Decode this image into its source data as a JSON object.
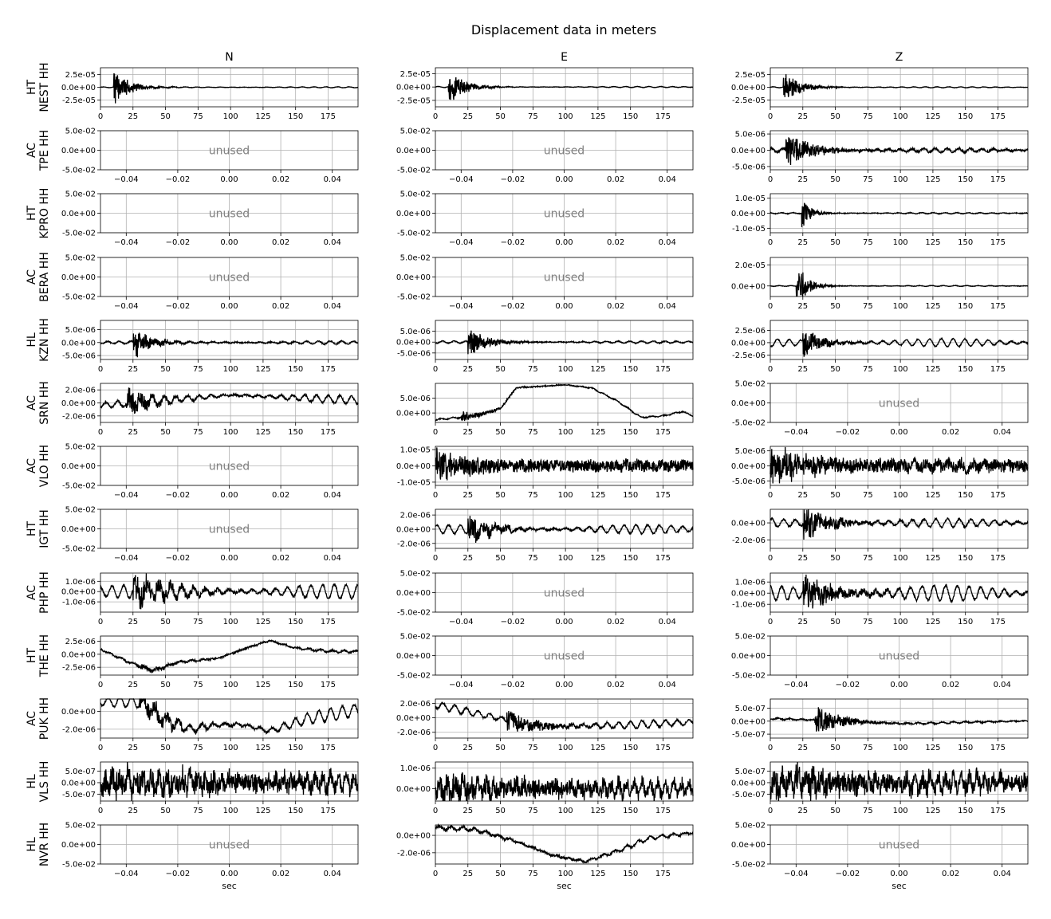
{
  "figure": {
    "title": "Displacement data in meters"
  },
  "chart_data": {
    "type": "line",
    "title": "Displacement data in meters",
    "layout": {
      "rows": 13,
      "cols": 3
    },
    "columns": [
      "N",
      "E",
      "Z"
    ],
    "xlabel": "sec",
    "stations": [
      "HT\nNEST HH",
      "AC\nTPE HH",
      "HT\nKPRO HH",
      "AC\nBERA HH",
      "HL\nKZN HH",
      "AC\nSRN HH",
      "AC\nVLO HH",
      "HT\nIGT HH",
      "AC\nPHP HH",
      "HT\nTHE HH",
      "AC\nPUK HH",
      "HL\nVLS HH",
      "HL\nNVR HH"
    ],
    "unused_label": "unused",
    "unused_axis": {
      "xlim": [
        -0.05,
        0.05
      ],
      "xticks": [
        -0.04,
        -0.02,
        0.0,
        0.02,
        0.04
      ],
      "xtick_labels": [
        "−0.04",
        "−0.02",
        "0.00",
        "0.02",
        "0.04"
      ],
      "ylim": [
        -0.05,
        0.05
      ],
      "yticks": [
        0.05,
        0.0,
        -0.05
      ],
      "ytick_labels": [
        "5.0e-02",
        "0.0e+00",
        "-5.0e-02"
      ]
    },
    "used_xaxis": {
      "xlim": [
        0,
        198
      ],
      "xticks": [
        0,
        25,
        50,
        75,
        100,
        125,
        150,
        175
      ],
      "xtick_labels": [
        "0",
        "25",
        "50",
        "75",
        "100",
        "125",
        "150",
        "175"
      ]
    },
    "traces": {
      "0-0": {
        "ylim": [
          -3.8e-05,
          3.8e-05
        ],
        "yticks": [
          2.5e-05,
          0,
          -2.5e-05
        ],
        "ytick_labels": [
          "2.5e-05",
          "0.0e+00",
          "-2.5e-05"
        ],
        "onset": 10,
        "amp": 3.6e-05,
        "decay": 12,
        "noise": 3e-07,
        "wave": 1e-06,
        "wper": 9,
        "trend": []
      },
      "0-1": {
        "ylim": [
          -3.7e-05,
          3.6e-05
        ],
        "yticks": [
          2.5e-05,
          0,
          -2.5e-05
        ],
        "ytick_labels": [
          "2.5e-05",
          "0.0e+00",
          "-2.5e-05"
        ],
        "onset": 10,
        "amp": 3.4e-05,
        "decay": 12,
        "noise": 3e-07,
        "wave": 1e-06,
        "wper": 9,
        "trend": []
      },
      "0-2": {
        "ylim": [
          -3.8e-05,
          3.8e-05
        ],
        "yticks": [
          2.5e-05,
          0,
          -2.5e-05
        ],
        "ytick_labels": [
          "2.5e-05",
          "0.0e+00",
          "-2.5e-05"
        ],
        "onset": 10,
        "amp": 3.5e-05,
        "decay": 12,
        "noise": 3e-07,
        "wave": 1e-06,
        "wper": 9,
        "trend": []
      },
      "1-2": {
        "ylim": [
          -6e-06,
          6e-06
        ],
        "yticks": [
          5e-06,
          0,
          -5e-06
        ],
        "ytick_labels": [
          "5.0e-06",
          "0.0e+00",
          "-5.0e-06"
        ],
        "onset": 12,
        "amp": 5.5e-06,
        "decay": 22,
        "noise": 3e-07,
        "wave": 6e-07,
        "wper": 9,
        "trend": []
      },
      "2-2": {
        "ylim": [
          -1.3e-05,
          1.3e-05
        ],
        "yticks": [
          1e-05,
          0,
          -1e-05
        ],
        "ytick_labels": [
          "1.0e-05",
          "0.0e+00",
          "-1.0e-05"
        ],
        "onset": 24,
        "amp": 1.2e-05,
        "decay": 7,
        "noise": 2e-07,
        "wave": 4e-07,
        "wper": 9,
        "trend": []
      },
      "3-2": {
        "ylim": [
          -1e-05,
          2.7e-05
        ],
        "yticks": [
          2e-05,
          0
        ],
        "ytick_labels": [
          "2.0e-05",
          "0.0e+00"
        ],
        "onset": 20,
        "amp": 2.6e-05,
        "decay": 8,
        "noise": 2e-07,
        "wave": 4e-07,
        "wper": 9,
        "trend": []
      },
      "4-0": {
        "ylim": [
          -6.5e-06,
          8.5e-06
        ],
        "yticks": [
          5e-06,
          0,
          -5e-06
        ],
        "ytick_labels": [
          "5.0e-06",
          "0.0e+00",
          "-5.0e-06"
        ],
        "onset": 25,
        "amp": 6.5e-06,
        "decay": 14,
        "noise": 2e-07,
        "wave": 6e-07,
        "wper": 9,
        "trend": []
      },
      "4-1": {
        "ylim": [
          -8e-06,
          1e-05
        ],
        "yticks": [
          5e-06,
          0,
          -5e-06
        ],
        "ytick_labels": [
          "5.0e-06",
          "0.0e+00",
          "-5.0e-06"
        ],
        "onset": 25,
        "amp": 7.5e-06,
        "decay": 14,
        "noise": 2e-07,
        "wave": 5e-07,
        "wper": 9,
        "trend": []
      },
      "4-2": {
        "ylim": [
          -3.4e-06,
          4.5e-06
        ],
        "yticks": [
          2.5e-06,
          0,
          -2.5e-06
        ],
        "ytick_labels": [
          "2.5e-06",
          "0.0e+00",
          "-2.5e-06"
        ],
        "onset": 25,
        "amp": 3.3e-06,
        "decay": 14,
        "noise": 1e-07,
        "wave": 8e-07,
        "wper": 9,
        "trend": []
      },
      "5-0": {
        "ylim": [
          -3e-06,
          3e-06
        ],
        "yticks": [
          2e-06,
          0,
          -2e-06
        ],
        "ytick_labels": [
          "2.0e-06",
          "0.0e+00",
          "-2.0e-06"
        ],
        "onset": 20,
        "amp": 2.5e-06,
        "decay": 18,
        "noise": 1.5e-07,
        "wave": 6e-07,
        "wper": 9,
        "trend": [
          [
            0,
            -4e-07
          ],
          [
            100,
            1.2e-06
          ],
          [
            198,
            4e-07
          ]
        ]
      },
      "5-1": {
        "ylim": [
          -3.2e-06,
          1e-05
        ],
        "yticks": [
          5e-06,
          0
        ],
        "ytick_labels": [
          "5.0e-06",
          "0.0e+00"
        ],
        "onset": 20,
        "amp": 2e-06,
        "decay": 18,
        "noise": 1.5e-07,
        "wave": 2e-07,
        "wper": 9,
        "trend": [
          [
            0,
            -2.3e-06
          ],
          [
            30,
            -1e-06
          ],
          [
            50,
            1.5e-06
          ],
          [
            62,
            8.5e-06
          ],
          [
            100,
            9.5e-06
          ],
          [
            120,
            8.5e-06
          ],
          [
            140,
            4e-06
          ],
          [
            158,
            -1.5e-06
          ],
          [
            175,
            -1e-06
          ],
          [
            190,
            5e-07
          ],
          [
            198,
            -1e-06
          ]
        ]
      },
      "6-1": {
        "ylim": [
          -1.2e-05,
          1.2e-05
        ],
        "yticks": [
          1e-05,
          0,
          -1e-05
        ],
        "ytick_labels": [
          "1.0e-05",
          "0.0e+00",
          "-1.0e-05"
        ],
        "onset": 0,
        "amp": 9e-06,
        "decay": 40,
        "noise": 3.5e-06,
        "wave": 1e-06,
        "wper": 9,
        "trend": []
      },
      "6-2": {
        "ylim": [
          -6.5e-06,
          6.5e-06
        ],
        "yticks": [
          5e-06,
          0,
          -5e-06
        ],
        "ytick_labels": [
          "5.0e-06",
          "0.0e+00",
          "-5.0e-06"
        ],
        "onset": 0,
        "amp": 5.5e-06,
        "decay": 40,
        "noise": 2e-06,
        "wave": 1e-06,
        "wper": 9,
        "trend": []
      },
      "7-1": {
        "ylim": [
          -2.7e-06,
          2.8e-06
        ],
        "yticks": [
          2e-06,
          0,
          -2e-06
        ],
        "ytick_labels": [
          "2.0e-06",
          "0.0e+00",
          "-2.0e-06"
        ],
        "onset": 25,
        "amp": 2.4e-06,
        "decay": 20,
        "noise": 1e-07,
        "wave": 6e-07,
        "wper": 9,
        "trend": []
      },
      "7-2": {
        "ylim": [
          -3e-06,
          1.6e-06
        ],
        "yticks": [
          0,
          -2e-06
        ],
        "ytick_labels": [
          "0.0e+00",
          "-2.0e-06"
        ],
        "onset": 25,
        "amp": 2.5e-06,
        "decay": 20,
        "noise": 1e-07,
        "wave": 5e-07,
        "wper": 9,
        "trend": []
      },
      "8-0": {
        "ylim": [
          -2e-06,
          1.8e-06
        ],
        "yticks": [
          1e-06,
          0,
          -1e-06
        ],
        "ytick_labels": [
          "1.0e-06",
          "0.0e+00",
          "-1.0e-06"
        ],
        "onset": 25,
        "amp": 1.7e-06,
        "decay": 30,
        "noise": 1e-07,
        "wave": 7e-07,
        "wper": 9,
        "trend": []
      },
      "8-2": {
        "ylim": [
          -1.7e-06,
          1.8e-06
        ],
        "yticks": [
          1e-06,
          0,
          -1e-06
        ],
        "ytick_labels": [
          "1.0e-06",
          "0.0e+00",
          "-1.0e-06"
        ],
        "onset": 25,
        "amp": 1.6e-06,
        "decay": 30,
        "noise": 1e-07,
        "wave": 7e-07,
        "wper": 9,
        "trend": []
      },
      "9-0": {
        "ylim": [
          -4e-06,
          3.5e-06
        ],
        "yticks": [
          2.5e-06,
          0,
          -2.5e-06
        ],
        "ytick_labels": [
          "2.5e-06",
          "0.0e+00",
          "-2.5e-06"
        ],
        "onset": 30,
        "amp": 7e-07,
        "decay": 25,
        "noise": 1.5e-07,
        "wave": 2e-07,
        "wper": 9,
        "trend": [
          [
            0,
            1e-06
          ],
          [
            20,
            -1.3e-06
          ],
          [
            40,
            -3.2e-06
          ],
          [
            60,
            -1.5e-06
          ],
          [
            90,
            -8e-07
          ],
          [
            110,
            1e-06
          ],
          [
            130,
            2.6e-06
          ],
          [
            150,
            1.2e-06
          ],
          [
            175,
            6e-07
          ],
          [
            198,
            5e-07
          ]
        ]
      },
      "10-0": {
        "ylim": [
          -3e-06,
          1.4e-06
        ],
        "yticks": [
          0,
          -2e-06
        ],
        "ytick_labels": [
          "0.0e+00",
          "-2.0e-06"
        ],
        "onset": 30,
        "amp": 1.4e-06,
        "decay": 30,
        "noise": 1.2e-07,
        "wave": 7e-07,
        "wper": 9,
        "trend": [
          [
            0,
            1.1e-06
          ],
          [
            30,
            1.1e-06
          ],
          [
            50,
            -1e-06
          ],
          [
            70,
            -2e-06
          ],
          [
            90,
            -1.5e-06
          ],
          [
            110,
            -1.5e-06
          ],
          [
            130,
            -2.2e-06
          ],
          [
            160,
            -8e-07
          ],
          [
            198,
            2e-07
          ]
        ]
      },
      "10-1": {
        "ylim": [
          -2.8e-06,
          2.6e-06
        ],
        "yticks": [
          2e-06,
          0,
          -2e-06
        ],
        "ytick_labels": [
          "2.0e-06",
          "0.0e+00",
          "-2.0e-06"
        ],
        "onset": 55,
        "amp": 1.6e-06,
        "decay": 30,
        "noise": 1.2e-07,
        "wave": 5e-07,
        "wper": 9,
        "trend": [
          [
            0,
            1.8e-06
          ],
          [
            50,
            -1e-07
          ],
          [
            75,
            -1.2e-06
          ],
          [
            120,
            -1.1e-06
          ],
          [
            150,
            -1e-06
          ],
          [
            198,
            -6e-07
          ]
        ]
      },
      "10-2": {
        "ylim": [
          -6.5e-07,
          8.5e-07
        ],
        "yticks": [
          5e-07,
          0,
          -5e-07
        ],
        "ytick_labels": [
          "5.0e-07",
          "0.0e+00",
          "-5.0e-07"
        ],
        "onset": 34,
        "amp": 6.5e-07,
        "decay": 20,
        "noise": 2e-08,
        "wave": 3e-08,
        "wper": 9,
        "trend": [
          [
            0,
            1e-07
          ],
          [
            60,
            0
          ],
          [
            100,
            -1e-07
          ],
          [
            198,
            1e-08
          ]
        ]
      },
      "11-0": {
        "ylim": [
          -8e-07,
          9e-07
        ],
        "yticks": [
          5e-07,
          0,
          -5e-07
        ],
        "ytick_labels": [
          "5.0e-07",
          "0.0e+00",
          "-5.0e-07"
        ],
        "onset": 0,
        "amp": 6e-07,
        "decay": 200,
        "noise": 2.5e-07,
        "wave": 3e-07,
        "wper": 6,
        "trend": []
      },
      "11-1": {
        "ylim": [
          -6e-07,
          1.3e-06
        ],
        "yticks": [
          1e-06,
          0
        ],
        "ytick_labels": [
          "1.0e-06",
          "0.0e+00"
        ],
        "onset": 0,
        "amp": 7e-07,
        "decay": 200,
        "noise": 1.8e-07,
        "wave": 3e-07,
        "wper": 6,
        "trend": []
      },
      "11-2": {
        "ylim": [
          -8e-07,
          9e-07
        ],
        "yticks": [
          5e-07,
          0,
          -5e-07
        ],
        "ytick_labels": [
          "5.0e-07",
          "0.0e+00",
          "-5.0e-07"
        ],
        "onset": 0,
        "amp": 6e-07,
        "decay": 200,
        "noise": 2.5e-07,
        "wave": 3e-07,
        "wper": 6,
        "trend": []
      },
      "12-1": {
        "ylim": [
          -3.3e-06,
          1.2e-06
        ],
        "yticks": [
          0,
          -2e-06
        ],
        "ytick_labels": [
          "0.0e+00",
          "-2.0e-06"
        ],
        "onset": 0,
        "amp": 2e-07,
        "decay": 200,
        "noise": 8e-08,
        "wave": 2e-07,
        "wper": 9,
        "trend": [
          [
            0,
            9e-07
          ],
          [
            30,
            7e-07
          ],
          [
            60,
            -6e-07
          ],
          [
            90,
            -2.3e-06
          ],
          [
            115,
            -3e-06
          ],
          [
            140,
            -1.8e-06
          ],
          [
            165,
            -3e-07
          ],
          [
            198,
            3e-07
          ]
        ]
      }
    }
  }
}
